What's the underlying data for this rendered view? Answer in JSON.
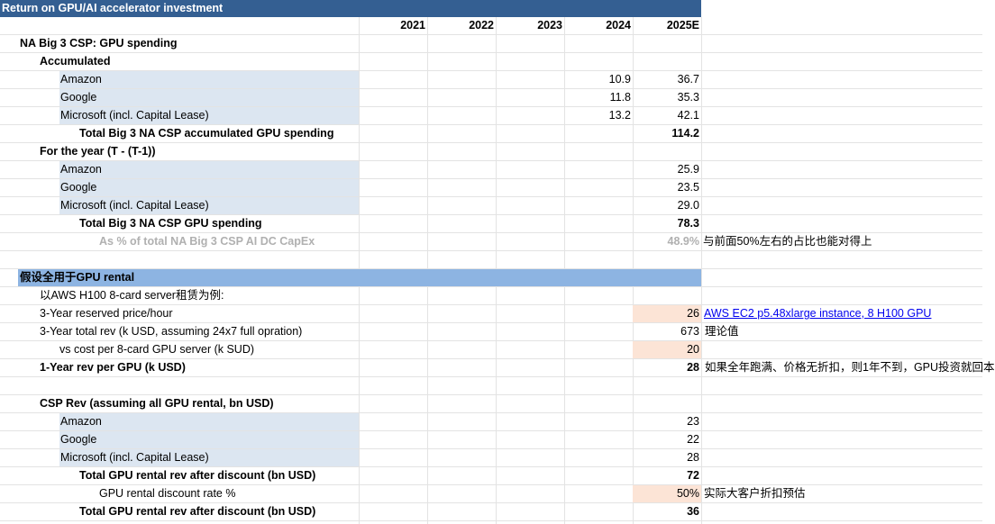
{
  "title": "Return on GPU/AI accelerator investment",
  "years": [
    "2021",
    "2022",
    "2023",
    "2024",
    "2025E"
  ],
  "section1": {
    "title": "NA Big 3 CSP: GPU spending",
    "accumulated": {
      "label": "Accumulated",
      "rows": [
        {
          "name": "Amazon",
          "v2024": "10.9",
          "v2025": "36.7"
        },
        {
          "name": "Google",
          "v2024": "11.8",
          "v2025": "35.3"
        },
        {
          "name": "Microsoft  (incl. Capital Lease)",
          "v2024": "13.2",
          "v2025": "42.1"
        }
      ],
      "total_label": "Total Big 3 NA CSP accumulated GPU spending",
      "total_2025": "114.2"
    },
    "for_year": {
      "label": "For the year (T - (T-1))",
      "rows": [
        {
          "name": "Amazon",
          "v2025": "25.9"
        },
        {
          "name": "Google",
          "v2025": "23.5"
        },
        {
          "name": "Microsoft  (incl. Capital Lease)",
          "v2025": "29.0"
        }
      ],
      "total_label": "Total Big 3 NA CSP GPU spending",
      "total_2025": "78.3",
      "pct_label": "As % of total NA Big 3 CSP AI DC CapEx",
      "pct_2025": "48.9%",
      "pct_note": "与前面50%左右的占比也能对得上"
    }
  },
  "section2": {
    "title": "假设全用于GPU rental",
    "example_label": "以AWS H100 8-card server租赁为例:",
    "price_label": "3-Year reserved price/hour",
    "price_value": "26",
    "price_link": "AWS EC2 p5.48xlarge instance, 8 H100 GPU",
    "total_rev_label": "3-Year total rev (k USD, assuming 24x7 full opration)",
    "total_rev_value": "673",
    "total_rev_note": "理论值",
    "cost_label": "vs cost per 8-card GPU server (k SUD)",
    "cost_value": "20",
    "rev_per_gpu_label": "1-Year rev per GPU (k USD)",
    "rev_per_gpu_value": "28",
    "rev_per_gpu_note": "如果全年跑满、价格无折扣，则1年不到，GPU投资就回本",
    "csp_rev_label": "CSP Rev (assuming all GPU rental, bn USD)",
    "csp_rows": [
      {
        "name": "Amazon",
        "v2025": "23"
      },
      {
        "name": "Google",
        "v2025": "22"
      },
      {
        "name": "Microsoft  (incl. Capital Lease)",
        "v2025": "28"
      }
    ],
    "total_rev1_label": "Total GPU rental rev after discount (bn USD)",
    "total_rev1_value": "72",
    "discount_label": "GPU rental discount rate %",
    "discount_value": "50%",
    "discount_note": "实际大客户折扣预估",
    "total_rev2_label": "Total GPU rental rev after discount (bn USD)",
    "total_rev2_value": "36"
  }
}
